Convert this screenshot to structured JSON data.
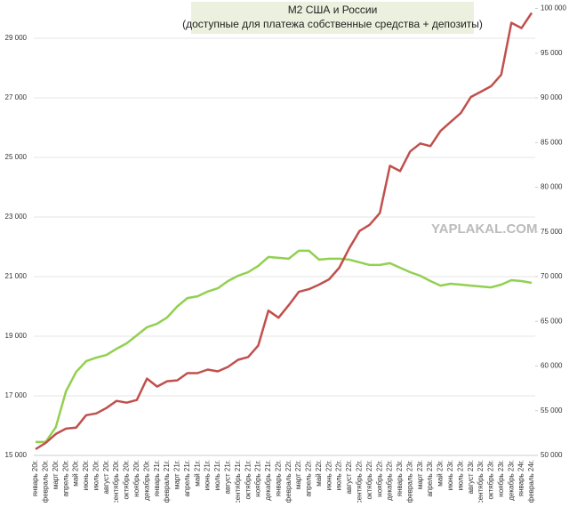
{
  "chart_data": {
    "type": "line",
    "title": "М2 США и России",
    "subtitle": "(доступные для платежа собственные средства + депозиты)",
    "annotation": "YAPLAKAL.COM",
    "categories": [
      "январь 20г.",
      "февраль 20г.",
      "март 20г.",
      "апрель 20г.",
      "май 20г.",
      "июнь 20г.",
      "июль 20г.",
      "август 20г.",
      "сентябрь 20г.",
      "октябрь 20г.",
      "ноябрь 20г.",
      "декабрь 20г.",
      "январь 21г.",
      "февраль 21г.",
      "март 21г.",
      "апрель 21г.",
      "май 21г.",
      "июнь 21г.",
      "июль 21г.",
      "август 21г.",
      "сентябрь 21г.",
      "октябрь 21г.",
      "ноябрь 21г.",
      "декабрь 21г.",
      "январь 22г.",
      "февраль 22г.",
      "март 22г.",
      "апрель 22г.",
      "май 22г.",
      "июнь 22г.",
      "июль 22г.",
      "август 22г.",
      "сентябрь 22г.",
      "октябрь 22г.",
      "ноябрь 22г.",
      "декабрь 22г.",
      "январь 23г.",
      "февраль 23г.",
      "март 23г.",
      "апрель 23г.",
      "май 23г.",
      "июнь 23г.",
      "июль 23г.",
      "август 23г.",
      "сентябрь 23г.",
      "октябрь 23г.",
      "ноябрь 23г.",
      "декабрь 23г.",
      "январь 24г.",
      "февраль 24г."
    ],
    "series": [
      {
        "color": "#92d050",
        "axis": "y",
        "values": [
          15450,
          15450,
          15950,
          17150,
          17800,
          18160,
          18280,
          18370,
          18580,
          18760,
          19030,
          19300,
          19420,
          19630,
          20000,
          20280,
          20340,
          20500,
          20610,
          20850,
          21030,
          21150,
          21360,
          21660,
          21630,
          21600,
          21870,
          21870,
          21570,
          21600,
          21600,
          21570,
          21480,
          21390,
          21390,
          21450,
          21300,
          21150,
          21030,
          20850,
          20700,
          20760,
          20730,
          20700,
          20670,
          20640,
          20730,
          20880,
          20850,
          20790
        ]
      },
      {
        "color": "#c0504d",
        "axis": "y2",
        "values": [
          50700,
          51400,
          52400,
          53000,
          53100,
          54500,
          54700,
          55300,
          56100,
          55900,
          56200,
          58600,
          57700,
          58300,
          58400,
          59200,
          59200,
          59600,
          59400,
          59900,
          60700,
          61000,
          62300,
          66200,
          65400,
          66800,
          68300,
          68600,
          69100,
          69700,
          71000,
          73200,
          75100,
          75800,
          77100,
          82400,
          81800,
          84000,
          84900,
          84600,
          86300,
          87300,
          88300,
          90100,
          90700,
          91300,
          92600,
          98400,
          97800,
          99500
        ]
      }
    ],
    "ylim": [
      15000,
      30000
    ],
    "yticks": [
      {
        "value": 15000,
        "label": "15 000"
      },
      {
        "value": 17000,
        "label": "17 000"
      },
      {
        "value": 19000,
        "label": "19 000"
      },
      {
        "value": 21000,
        "label": "21 000"
      },
      {
        "value": 23000,
        "label": "23 000"
      },
      {
        "value": 25000,
        "label": "25 000"
      },
      {
        "value": 27000,
        "label": "27 000"
      },
      {
        "value": 29000,
        "label": "29 000"
      }
    ],
    "y2lim": [
      50000,
      100000
    ],
    "y2ticks": [
      {
        "value": 50000,
        "label": "50 000"
      },
      {
        "value": 55000,
        "label": "55 000"
      },
      {
        "value": 60000,
        "label": "60 000"
      },
      {
        "value": 65000,
        "label": "65 000"
      },
      {
        "value": 70000,
        "label": "70 000"
      },
      {
        "value": 75000,
        "label": "75 000"
      },
      {
        "value": 80000,
        "label": "80 000"
      },
      {
        "value": 85000,
        "label": "85 000"
      },
      {
        "value": 90000,
        "label": "90 000"
      },
      {
        "value": 95000,
        "label": "95 000"
      },
      {
        "value": 100000,
        "label": "100 000"
      }
    ],
    "grid": true
  }
}
